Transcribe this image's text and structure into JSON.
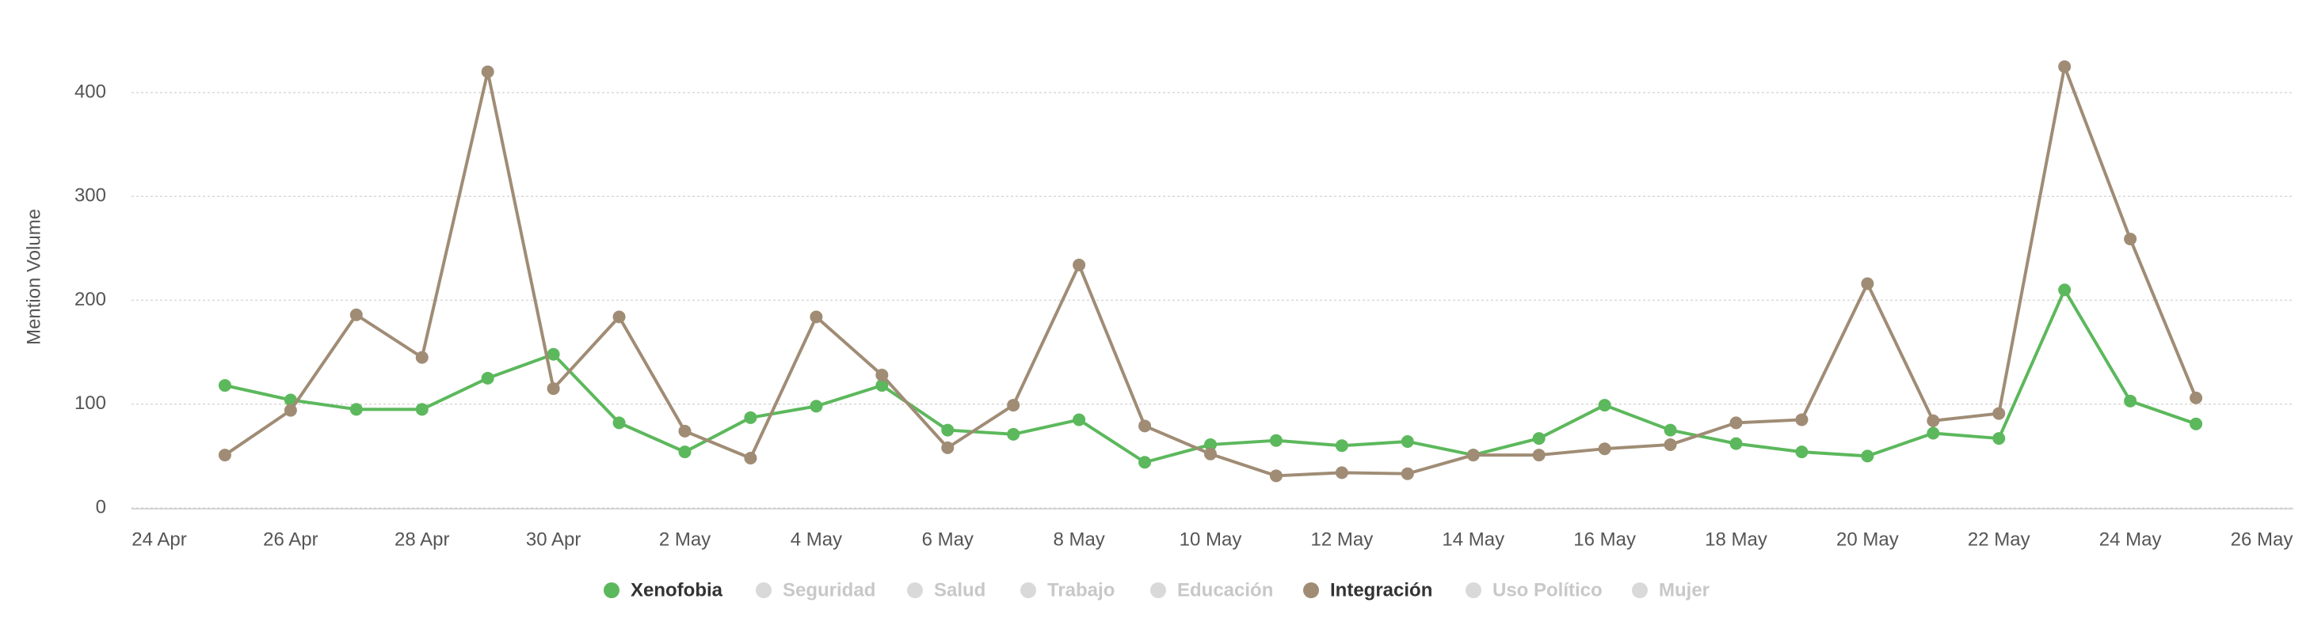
{
  "chart_data": {
    "type": "line",
    "y_label": "Mention Volume",
    "x": [
      "25 Apr",
      "26 Apr",
      "27 Apr",
      "28 Apr",
      "29 Apr",
      "30 Apr",
      "1 May",
      "2 May",
      "3 May",
      "4 May",
      "5 May",
      "6 May",
      "7 May",
      "8 May",
      "9 May",
      "10 May",
      "11 May",
      "12 May",
      "13 May",
      "14 May",
      "15 May",
      "16 May",
      "17 May",
      "18 May",
      "19 May",
      "20 May",
      "21 May",
      "22 May",
      "23 May",
      "24 May",
      "25 May"
    ],
    "xlim": [
      "24 Apr",
      "26 May"
    ],
    "xticks": [
      "24 Apr",
      "26 Apr",
      "28 Apr",
      "30 Apr",
      "2 May",
      "4 May",
      "6 May",
      "8 May",
      "10 May",
      "12 May",
      "14 May",
      "16 May",
      "18 May",
      "20 May",
      "22 May",
      "24 May",
      "26 May"
    ],
    "ylim": [
      0,
      400
    ],
    "yticks": [
      0,
      100,
      200,
      300,
      400
    ],
    "grid": true,
    "legend": "bottom",
    "series": [
      {
        "name": "Xenofobia",
        "color": "#5cb85c",
        "visible": true,
        "values": [
          118,
          104,
          95,
          95,
          125,
          148,
          82,
          54,
          87,
          98,
          118,
          75,
          71,
          85,
          44,
          61,
          65,
          60,
          64,
          51,
          67,
          99,
          75,
          62,
          54,
          50,
          72,
          67,
          210,
          103,
          81
        ]
      },
      {
        "name": "Seguridad",
        "color": "#d9d9d9",
        "visible": false
      },
      {
        "name": "Salud",
        "color": "#d9d9d9",
        "visible": false
      },
      {
        "name": "Trabajo",
        "color": "#d9d9d9",
        "visible": false
      },
      {
        "name": "Educación",
        "color": "#d9d9d9",
        "visible": false
      },
      {
        "name": "Integración",
        "color": "#a08c75",
        "visible": true,
        "values": [
          51,
          94,
          186,
          145,
          420,
          115,
          184,
          74,
          48,
          184,
          128,
          58,
          99,
          234,
          79,
          52,
          31,
          34,
          33,
          51,
          51,
          57,
          61,
          82,
          85,
          216,
          84,
          91,
          425,
          259,
          106
        ]
      },
      {
        "name": "Uso Político",
        "color": "#d9d9d9",
        "visible": false
      },
      {
        "name": "Mujer",
        "color": "#d9d9d9",
        "visible": false
      }
    ]
  }
}
